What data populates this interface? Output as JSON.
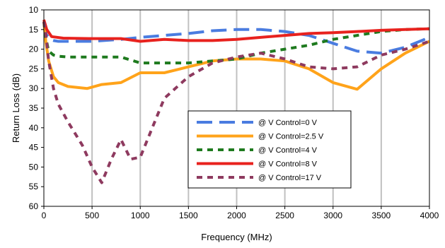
{
  "chart_data": {
    "type": "line",
    "title": "",
    "xlabel": "Frequency (MHz)",
    "ylabel": "Return Loss (dB)",
    "xlim": [
      0,
      4000
    ],
    "ylim": [
      10,
      60
    ],
    "y_inverted": true,
    "x_ticks": [
      "0",
      "500",
      "1000",
      "1500",
      "2000",
      "2500",
      "3000",
      "3500",
      "4000"
    ],
    "y_ticks": [
      "10",
      "15",
      "20",
      "25",
      "30",
      "35",
      "40",
      "45",
      "50",
      "55",
      "60"
    ],
    "grid": "vertical",
    "legend_position": "inside-center-right",
    "series": [
      {
        "name": "@ V Control=0 V",
        "color": "#4a7ce0",
        "dash": "long-dash",
        "x": [
          0,
          20,
          60,
          100,
          150,
          250,
          500,
          800,
          1000,
          1250,
          1500,
          1750,
          2000,
          2250,
          2500,
          2750,
          3000,
          3250,
          3500,
          3750,
          4000
        ],
        "y": [
          13,
          16,
          17.5,
          17.8,
          18,
          18,
          18,
          17.5,
          17,
          16.5,
          16,
          15.3,
          15,
          15,
          15.5,
          16.5,
          18.5,
          20.5,
          21,
          19.5,
          17
        ]
      },
      {
        "name": "@ V Control=2.5 V",
        "color": "#ffa31a",
        "dash": "solid",
        "x": [
          0,
          20,
          50,
          100,
          150,
          250,
          450,
          600,
          800,
          1000,
          1250,
          1500,
          1750,
          2000,
          2250,
          2500,
          2750,
          3000,
          3250,
          3500,
          3750,
          4000
        ],
        "y": [
          13,
          18,
          23,
          27,
          28.5,
          29.5,
          30,
          29,
          28.5,
          26,
          26,
          24.5,
          23,
          22.5,
          22.5,
          23,
          25,
          28.5,
          30.2,
          25,
          21,
          18
        ]
      },
      {
        "name": "@ V Control=4 V",
        "color": "#1e7a1e",
        "dash": "short-dash",
        "x": [
          0,
          20,
          50,
          100,
          150,
          250,
          500,
          800,
          1000,
          1250,
          1500,
          1750,
          2000,
          2250,
          2500,
          2750,
          3000,
          3250,
          3500,
          3750,
          4000
        ],
        "y": [
          13,
          17,
          20.5,
          21.5,
          21.8,
          22,
          22,
          22,
          23.5,
          23.5,
          23.5,
          23,
          22.5,
          21,
          20,
          19,
          17.5,
          16.5,
          15.5,
          15,
          14.8
        ]
      },
      {
        "name": "@ V Control=8 V",
        "color": "#e8221e",
        "dash": "solid",
        "x": [
          0,
          30,
          80,
          200,
          500,
          800,
          1000,
          1250,
          1500,
          1750,
          2000,
          2250,
          2500,
          2750,
          3000,
          3250,
          3500,
          3750,
          4000
        ],
        "y": [
          12.5,
          15,
          16.8,
          17.2,
          17.3,
          17.3,
          18,
          17.5,
          17.8,
          17.8,
          17.5,
          17,
          16.5,
          16,
          15.8,
          15.5,
          15.2,
          15,
          14.8
        ]
      },
      {
        "name": "@ V Control=17 V",
        "color": "#8e3a5f",
        "dash": "short-dash",
        "x": [
          0,
          20,
          50,
          100,
          150,
          250,
          400,
          500,
          600,
          700,
          800,
          900,
          1000,
          1250,
          1500,
          1750,
          2000,
          2250,
          2500,
          2750,
          3000,
          3250,
          3500,
          3750,
          4000
        ],
        "y": [
          13,
          16,
          23,
          30,
          34,
          38.5,
          44.5,
          50,
          54,
          48,
          43,
          48,
          47.5,
          32.5,
          27,
          23.5,
          22,
          21,
          22.5,
          24.5,
          25,
          24.5,
          21.5,
          20,
          18
        ]
      }
    ]
  }
}
